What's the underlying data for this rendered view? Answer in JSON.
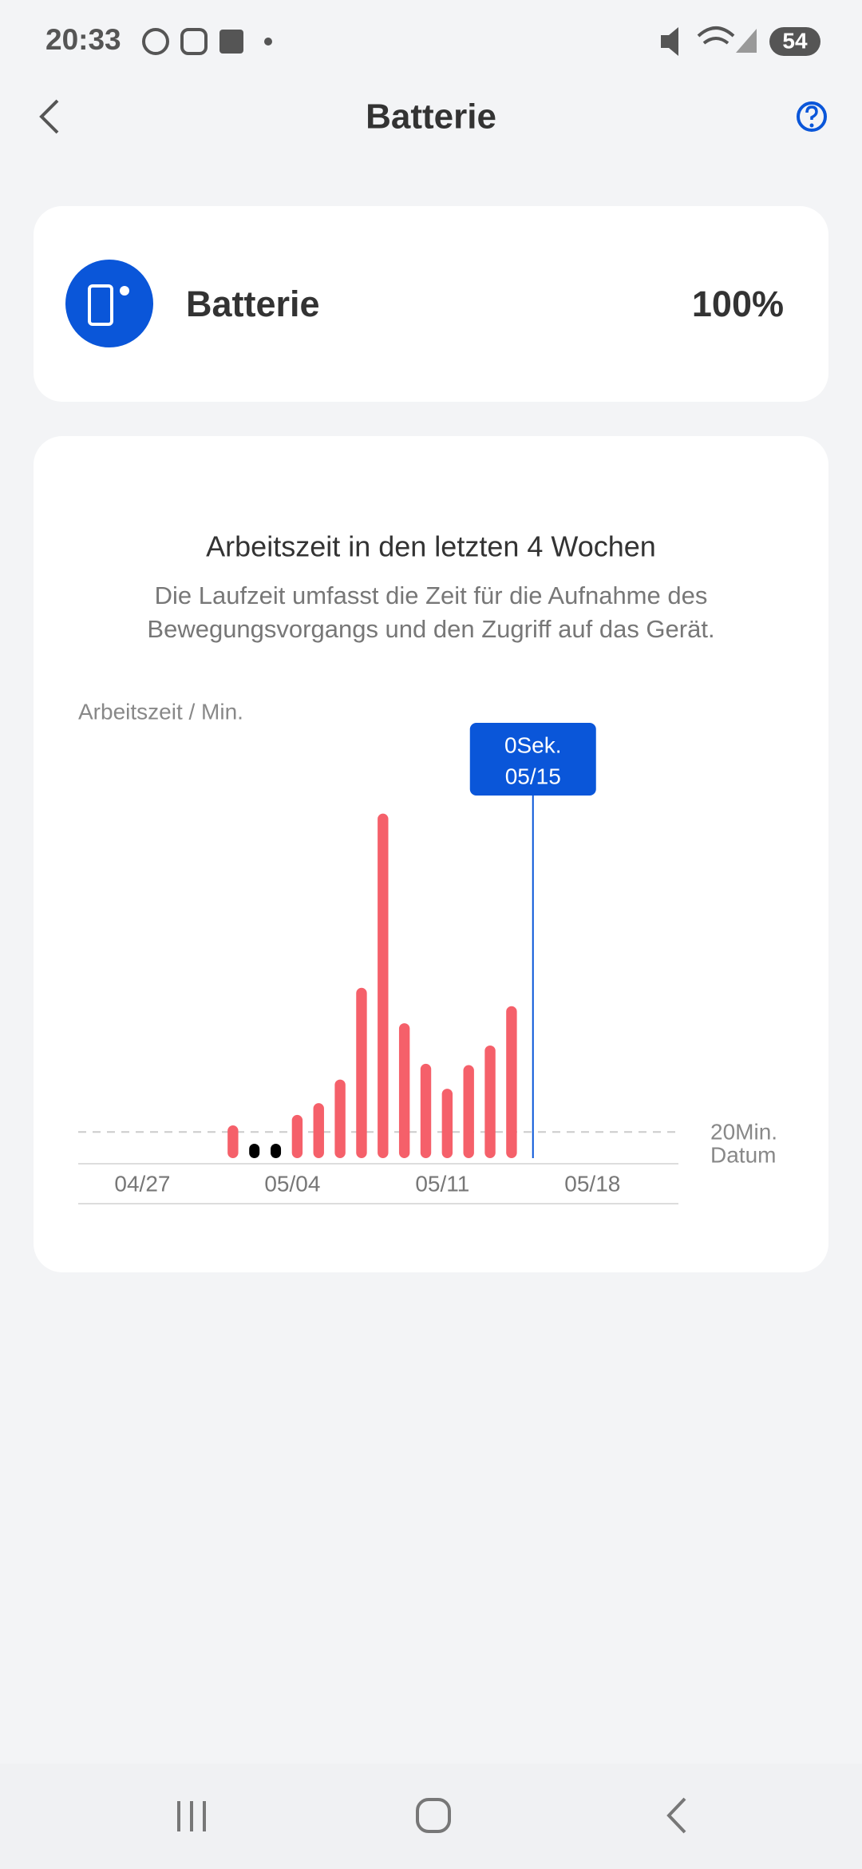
{
  "status_bar": {
    "time": "20:33",
    "battery": "54"
  },
  "header": {
    "title": "Batterie"
  },
  "battery_card": {
    "label": "Batterie",
    "level": "100%"
  },
  "chart_card": {
    "title": "Arbeitszeit in den letzten 4 Wochen",
    "description": [
      "Die Laufzeit umfasst die Zeit für die Aufnahme des",
      "Bewegungsvorgangs und den Zugriff auf das Gerät."
    ]
  },
  "chart_data": {
    "type": "bar",
    "y_label": "Arbeitszeit / Min.",
    "x_label": "Datum",
    "categories": [
      "04/24",
      "04/25",
      "04/26",
      "04/27",
      "04/28",
      "04/29",
      "04/30",
      "05/01",
      "05/02",
      "05/03",
      "05/04",
      "05/05",
      "05/06",
      "05/07",
      "05/08",
      "05/09",
      "05/10",
      "05/11",
      "05/12",
      "05/13",
      "05/14",
      "05/15",
      "05/16",
      "05/17",
      "05/18",
      "05/19",
      "05/20",
      "05/21"
    ],
    "values": [
      null,
      null,
      null,
      null,
      null,
      null,
      null,
      25,
      0,
      0,
      33,
      42,
      60,
      130,
      263,
      103,
      72,
      53,
      71,
      86,
      116,
      null,
      null,
      null,
      null,
      null,
      null,
      null
    ],
    "color": "#f5606a",
    "zero_color": "#000000",
    "xticks": [
      "04/27",
      "05/04",
      "05/11",
      "05/18"
    ],
    "ylim": [
      0,
      300
    ],
    "reference": {
      "value": 20,
      "label": "20Min."
    },
    "tooltip": {
      "value": 0,
      "value_label": "0Sek.",
      "category": "05/15",
      "color": "#0a56d9"
    }
  }
}
